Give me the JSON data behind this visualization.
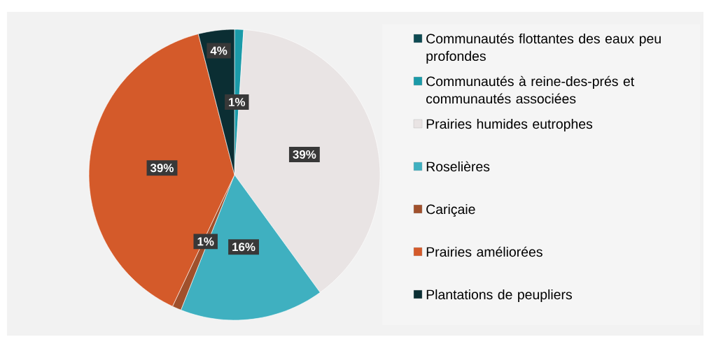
{
  "chart_data": {
    "type": "pie",
    "categories": [
      "Communautés flottantes des eaux peu profondes",
      "Communautés à reine-des-prés et communautés associées",
      "Prairies humides eutrophes",
      "Roselières",
      "Cariçaie",
      "Prairies améliorées",
      "Plantations de peupliers"
    ],
    "values": [
      0,
      1,
      39,
      16,
      1,
      39,
      4
    ],
    "value_labels": [
      null,
      "1%",
      "39%",
      "16%",
      "1%",
      "39%",
      "4%"
    ],
    "colors": [
      "#0e4a52",
      "#1a9aa8",
      "#e9e4e4",
      "#3fb0c0",
      "#a0502c",
      "#d45a2a",
      "#0b2e33"
    ],
    "legend": "right"
  }
}
